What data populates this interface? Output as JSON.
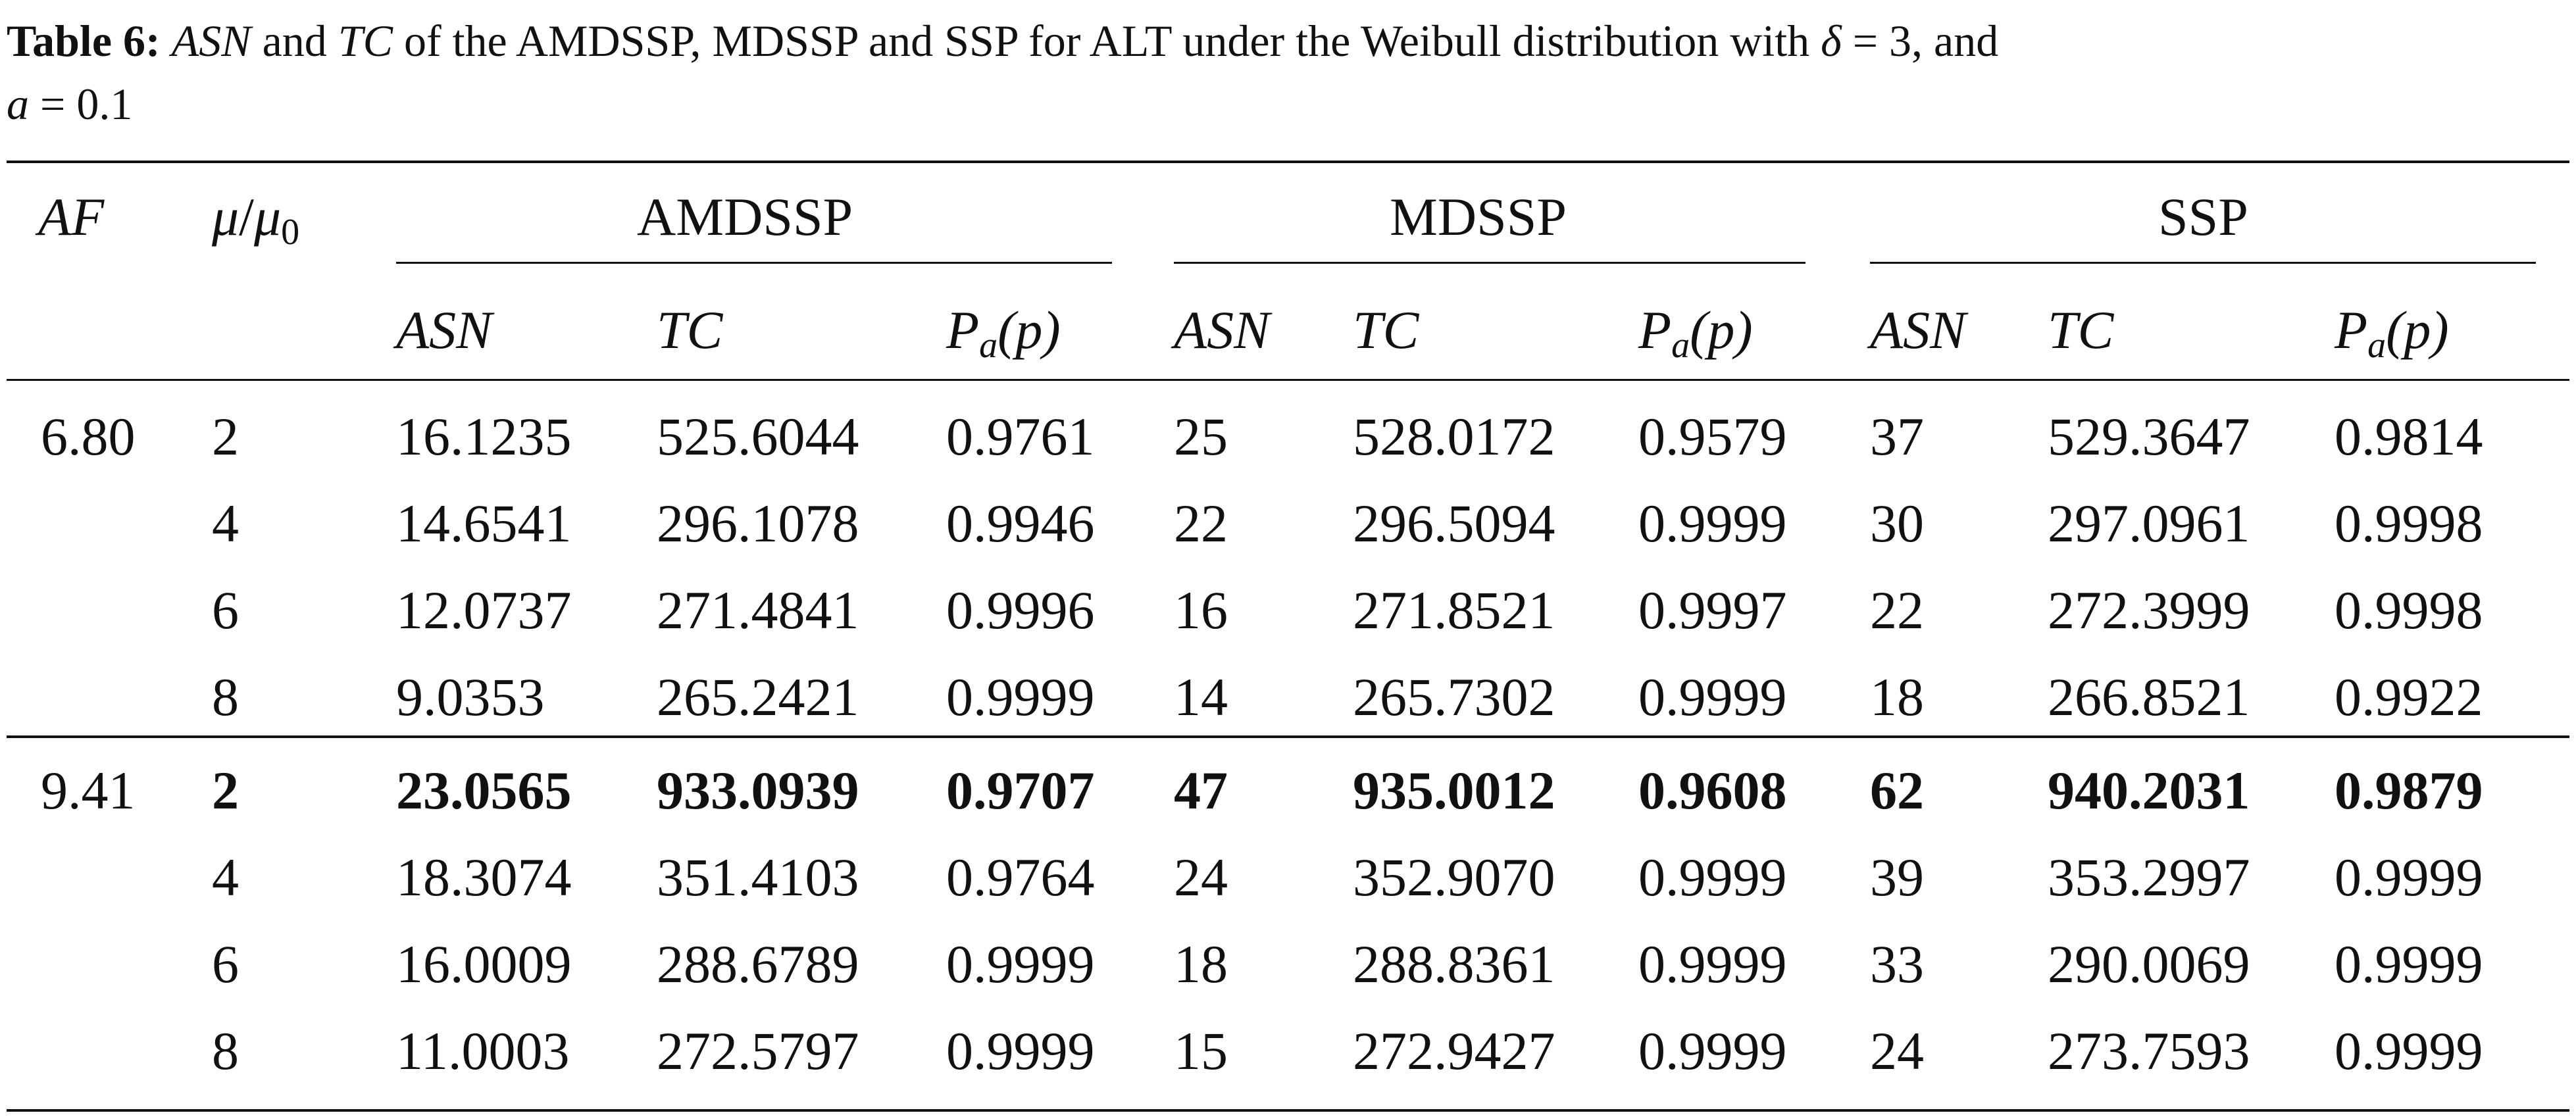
{
  "caption": {
    "label": "Table 6:",
    "asn": "ASN",
    "and1": " and ",
    "tc": "TC",
    "text1": " of the AMDSSP, MDSSP and SSP for ALT under the Weibull distribution with ",
    "delta": "δ",
    "delta_eq": " = 3, and",
    "a": "a",
    "a_eq": " = 0.1"
  },
  "header": {
    "af": "AF",
    "mu": "μ",
    "slash": "/",
    "mu0": "μ",
    "mu0_sub": "0",
    "groups": [
      "AMDSSP",
      "MDSSP",
      "SSP"
    ],
    "sub_cols": [
      "ASN",
      "TC",
      "P"
    ],
    "pa_sub": "a",
    "pa_arg": "(p)"
  },
  "rows": [
    {
      "af": "6.80",
      "mu": "2",
      "v": [
        "16.1235",
        "525.6044",
        "0.9761",
        "25",
        "528.0172",
        "0.9579",
        "37",
        "529.3647",
        "0.9814"
      ],
      "bold": false
    },
    {
      "af": "",
      "mu": "4",
      "v": [
        "14.6541",
        "296.1078",
        "0.9946",
        "22",
        "296.5094",
        "0.9999",
        "30",
        "297.0961",
        "0.9998"
      ],
      "bold": false
    },
    {
      "af": "",
      "mu": "6",
      "v": [
        "12.0737",
        "271.4841",
        "0.9996",
        "16",
        "271.8521",
        "0.9997",
        "22",
        "272.3999",
        "0.9998"
      ],
      "bold": false
    },
    {
      "af": "",
      "mu": "8",
      "v": [
        "9.0353",
        "265.2421",
        "0.9999",
        "14",
        "265.7302",
        "0.9999",
        "18",
        "266.8521",
        "0.9922"
      ],
      "bold": false
    },
    {
      "af": "9.41",
      "mu": "2",
      "v": [
        "23.0565",
        "933.0939",
        "0.9707",
        "47",
        "935.0012",
        "0.9608",
        "62",
        "940.2031",
        "0.9879"
      ],
      "bold": true
    },
    {
      "af": "",
      "mu": "4",
      "v": [
        "18.3074",
        "351.4103",
        "0.9764",
        "24",
        "352.9070",
        "0.9999",
        "39",
        "353.2997",
        "0.9999"
      ],
      "bold": false
    },
    {
      "af": "",
      "mu": "6",
      "v": [
        "16.0009",
        "288.6789",
        "0.9999",
        "18",
        "288.8361",
        "0.9999",
        "33",
        "290.0069",
        "0.9999"
      ],
      "bold": false
    },
    {
      "af": "",
      "mu": "8",
      "v": [
        "11.0003",
        "272.5797",
        "0.9999",
        "15",
        "272.9427",
        "0.9999",
        "24",
        "273.7593",
        "0.9999"
      ],
      "bold": false
    }
  ]
}
